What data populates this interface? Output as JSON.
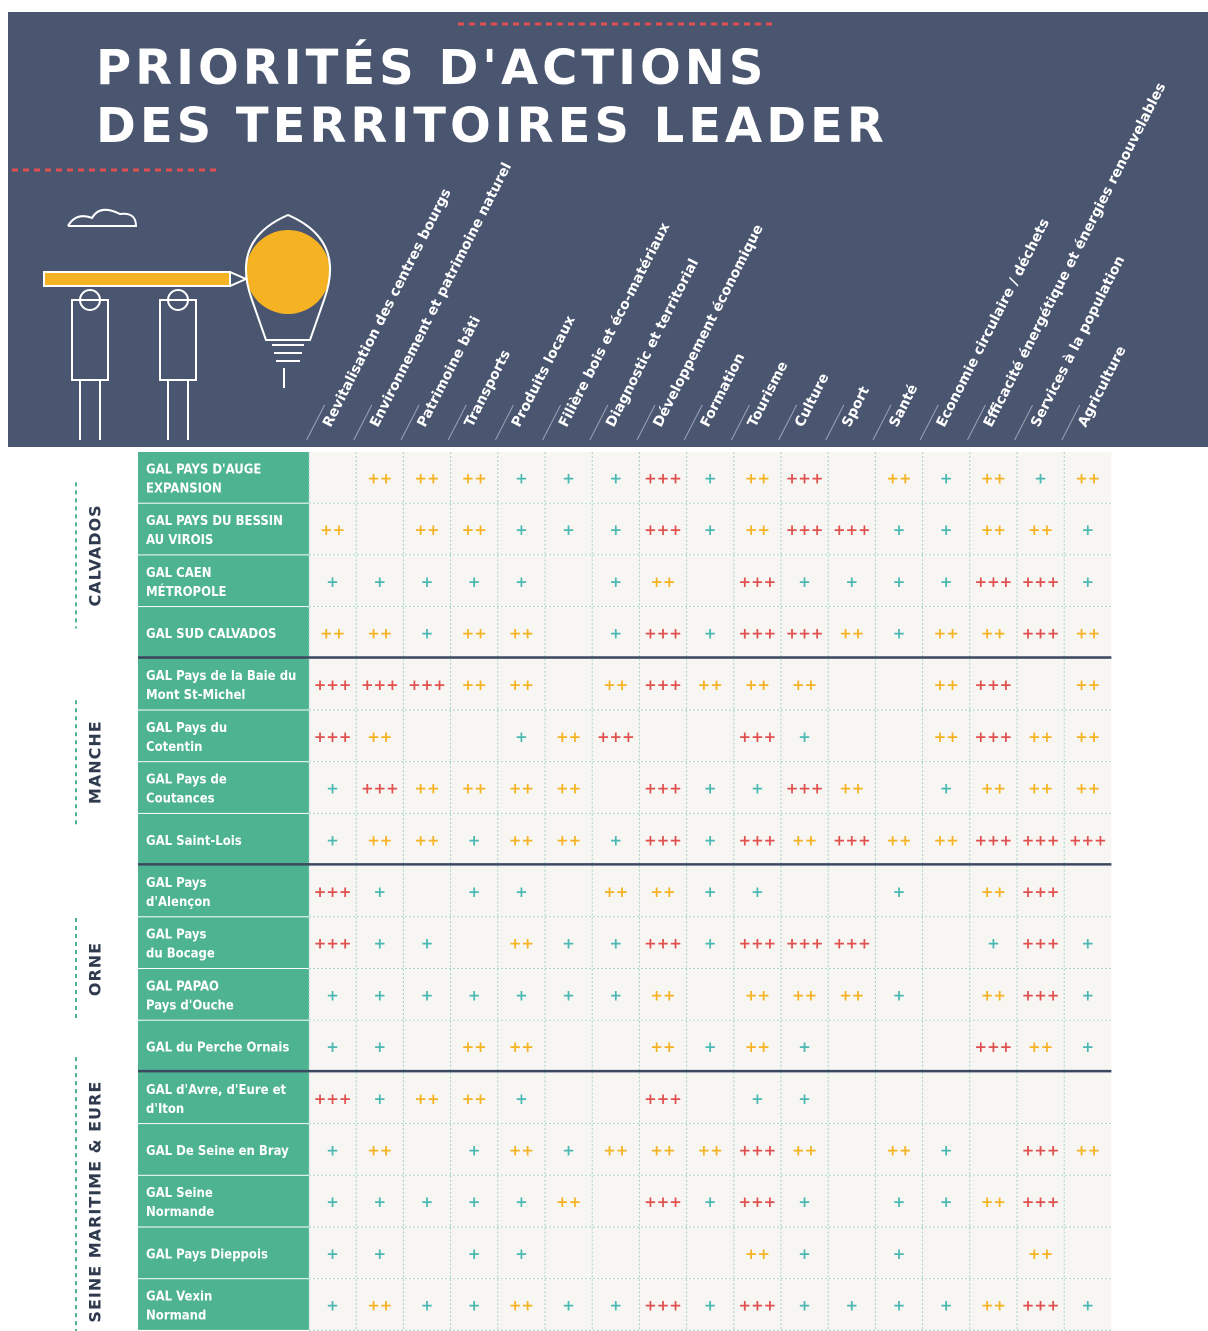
{
  "header": {
    "title": [
      "PRIORITÉS D'ACTIONS",
      "DES TERRITOIRES LEADER"
    ]
  },
  "columns": [
    "Revitalisation des centres bourgs",
    "Environnement et patrimoine naturel",
    "Patrimoine bâti",
    "Transports",
    "Produits locaux",
    "Filière bois et éco-matériaux",
    "Diagnostic et territorial",
    "Développement économique",
    "Formation",
    "Tourisme",
    "Culture",
    "Sport",
    "Santé",
    "Economie circulaire / déchets",
    "Efficacité énergétique et énergies renouvelables",
    "Services à la population",
    "Agriculture"
  ],
  "groups": [
    {
      "name": "CALVADOS",
      "rows": [
        {
          "label": [
            "GAL PAYS D'AUGE",
            "EXPANSION"
          ],
          "cells": [
            null,
            "++",
            "++",
            "++",
            "+",
            "+",
            "+",
            "+++",
            "+",
            "++",
            "+++",
            null,
            "++",
            "+",
            "++",
            "+",
            "++"
          ]
        },
        {
          "label": [
            "GAL PAYS DU BESSIN",
            "AU VIROIS"
          ],
          "cells": [
            "++",
            null,
            "++",
            "++",
            "+",
            "+",
            "+",
            "+++",
            "+",
            "++",
            "+++",
            "+++",
            "+",
            "+",
            "++",
            "++",
            "+"
          ]
        },
        {
          "label": [
            "GAL CAEN",
            "MÉTROPOLE"
          ],
          "cells": [
            "+",
            "+",
            "+",
            "+",
            "+",
            null,
            "+",
            "++",
            null,
            "+++",
            "+",
            "+",
            "+",
            "+",
            "+++",
            "+++",
            "+"
          ]
        },
        {
          "label": [
            "GAL SUD CALVADOS"
          ],
          "cells": [
            "++",
            "++",
            "+",
            "++",
            "++",
            null,
            "+",
            "+++",
            "+",
            "+++",
            "+++",
            "++",
            "+",
            "++",
            "++",
            "+++",
            "++"
          ]
        }
      ]
    },
    {
      "name": "MANCHE",
      "rows": [
        {
          "label": [
            "GAL Pays de la Baie du",
            "Mont St-Michel"
          ],
          "cells": [
            "+++",
            "+++",
            "+++",
            "++",
            "++",
            null,
            "++",
            "+++",
            "++",
            "++",
            "++",
            null,
            null,
            "++",
            "+++",
            null,
            "++"
          ]
        },
        {
          "label": [
            "GAL Pays du",
            "Cotentin"
          ],
          "cells": [
            "+++",
            "++",
            null,
            null,
            "+",
            "++",
            "+++",
            null,
            null,
            "+++",
            "+",
            null,
            null,
            "++",
            "+++",
            "++",
            "++"
          ]
        },
        {
          "label": [
            "GAL Pays de",
            "Coutances"
          ],
          "cells": [
            "+",
            "+++",
            "++",
            "++",
            "++",
            "++",
            null,
            "+++",
            "+",
            "+",
            "+++",
            "++",
            null,
            "+",
            "++",
            "++",
            "++"
          ]
        },
        {
          "label": [
            "GAL Saint-Lois"
          ],
          "cells": [
            "+",
            "++",
            "++",
            "+",
            "++",
            "++",
            "+",
            "+++",
            "+",
            "+++",
            "++",
            "+++",
            "++",
            "++",
            "+++",
            "+++",
            "+++"
          ]
        }
      ]
    },
    {
      "name": "ORNE",
      "rows": [
        {
          "label": [
            "GAL Pays",
            "d'Alençon"
          ],
          "cells": [
            "+++",
            "+",
            null,
            "+",
            "+",
            null,
            "++",
            "++",
            "+",
            "+",
            null,
            null,
            "+",
            null,
            "++",
            "+++",
            null
          ]
        },
        {
          "label": [
            "GAL Pays",
            "du Bocage"
          ],
          "cells": [
            "+++",
            "+",
            "+",
            null,
            "++",
            "+",
            "+",
            "+++",
            "+",
            "+++",
            "+++",
            "+++",
            null,
            null,
            "+",
            "+++",
            "+"
          ]
        },
        {
          "label": [
            "GAL PAPAO",
            "Pays d'Ouche"
          ],
          "cells": [
            "+",
            "+",
            "+",
            "+",
            "+",
            "+",
            "+",
            "++",
            null,
            "++",
            "++",
            "++",
            "+",
            null,
            "++",
            "+++",
            "+"
          ]
        },
        {
          "label": [
            "GAL du Perche Ornais"
          ],
          "cells": [
            "+",
            "+",
            null,
            "++",
            "++",
            null,
            null,
            "++",
            "+",
            "++",
            "+",
            null,
            null,
            null,
            "+++",
            "++",
            "+"
          ]
        }
      ]
    },
    {
      "name": "SEINE MARITIME & EURE",
      "rows": [
        {
          "label": [
            "GAL d'Avre, d'Eure et",
            "d'Iton"
          ],
          "cells": [
            "+++",
            "+",
            "++",
            "++",
            "+",
            null,
            null,
            "+++",
            null,
            "+",
            "+",
            null,
            null,
            null,
            null,
            null,
            null
          ]
        },
        {
          "label": [
            "GAL De Seine en Bray"
          ],
          "cells": [
            "+",
            "++",
            null,
            "+",
            "++",
            "+",
            "++",
            "++",
            "++",
            "+++",
            "++",
            null,
            "++",
            "+",
            null,
            "+++",
            "++"
          ]
        },
        {
          "label": [
            "GAL Seine",
            "Normande"
          ],
          "cells": [
            "+",
            "+",
            "+",
            "+",
            "+",
            "++",
            null,
            "+++",
            "+",
            "+++",
            "+",
            null,
            "+",
            "+",
            "++",
            "+++",
            null
          ]
        },
        {
          "label": [
            "GAL Pays Dieppois"
          ],
          "cells": [
            "+",
            "+",
            null,
            "+",
            "+",
            null,
            null,
            null,
            null,
            "++",
            "+",
            null,
            "+",
            null,
            null,
            "++",
            null
          ]
        },
        {
          "label": [
            "GAL Vexin",
            "Normand"
          ],
          "cells": [
            "+",
            "++",
            "+",
            "+",
            "++",
            "+",
            "+",
            "+++",
            "+",
            "+++",
            "+",
            "+",
            "+",
            "+",
            "++",
            "+++",
            "+"
          ]
        }
      ]
    }
  ]
}
